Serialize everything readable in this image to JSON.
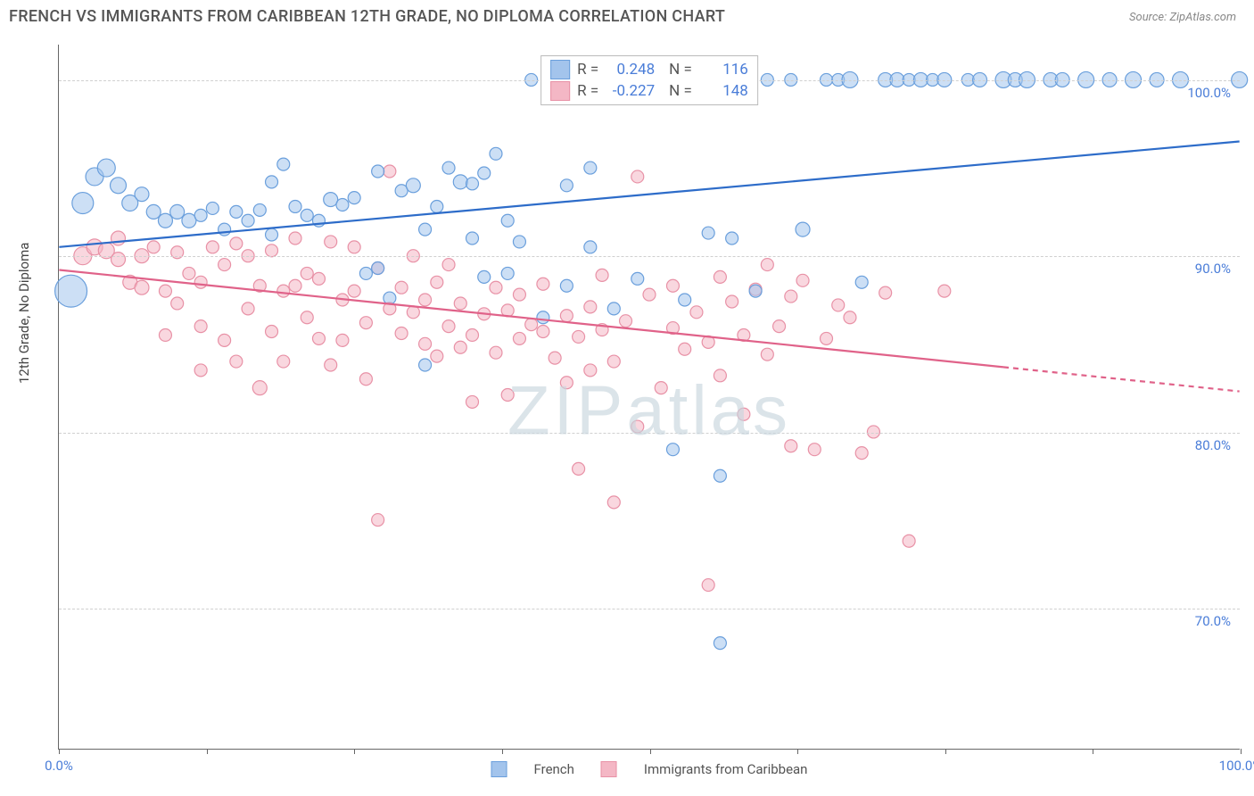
{
  "title": "FRENCH VS IMMIGRANTS FROM CARIBBEAN 12TH GRADE, NO DIPLOMA CORRELATION CHART",
  "source_label": "Source: ",
  "source_name": "ZipAtlas.com",
  "y_axis_label": "12th Grade, No Diploma",
  "watermark": "ZIPatlas",
  "chart": {
    "type": "scatter",
    "xlim": [
      0,
      100
    ],
    "ylim": [
      62,
      102
    ],
    "x_ticks": [
      0,
      12.5,
      25,
      37.5,
      50,
      62.5,
      75,
      87.5,
      100
    ],
    "x_tick_labels": {
      "0": "0.0%",
      "100": "100.0%"
    },
    "y_ticks": [
      70,
      80,
      90,
      100
    ],
    "y_tick_labels": {
      "70": "70.0%",
      "80": "80.0%",
      "90": "90.0%",
      "100": "100.0%"
    },
    "grid_color": "#d0d0d0",
    "background": "#ffffff",
    "series": {
      "french": {
        "label": "French",
        "color_fill": "#a3c4ec",
        "color_stroke": "#6a9fdc",
        "fill_opacity": 0.55,
        "line_color": "#2d6cc9",
        "line_width": 2.2,
        "R": "0.248",
        "N": "116",
        "trend": {
          "x1": 0,
          "y1": 90.5,
          "x2": 100,
          "y2": 96.5,
          "dash_from_x": null
        },
        "points": [
          [
            1,
            88,
            18
          ],
          [
            2,
            93,
            12
          ],
          [
            3,
            94.5,
            10
          ],
          [
            4,
            95,
            10
          ],
          [
            5,
            94,
            9
          ],
          [
            6,
            93,
            9
          ],
          [
            7,
            93.5,
            8
          ],
          [
            8,
            92.5,
            8
          ],
          [
            9,
            92,
            8
          ],
          [
            10,
            92.5,
            8
          ],
          [
            11,
            92,
            8
          ],
          [
            12,
            92.3,
            7
          ],
          [
            13,
            92.7,
            7
          ],
          [
            14,
            91.5,
            7
          ],
          [
            15,
            92.5,
            7
          ],
          [
            16,
            92,
            7
          ],
          [
            17,
            92.6,
            7
          ],
          [
            18,
            91.2,
            7
          ],
          [
            18,
            94.2,
            7
          ],
          [
            19,
            95.2,
            7
          ],
          [
            20,
            92.8,
            7
          ],
          [
            21,
            92.3,
            7
          ],
          [
            22,
            92,
            7
          ],
          [
            23,
            93.2,
            8
          ],
          [
            24,
            92.9,
            7
          ],
          [
            25,
            93.3,
            7
          ],
          [
            26,
            89,
            7
          ],
          [
            27,
            89.3,
            7
          ],
          [
            27,
            94.8,
            7
          ],
          [
            28,
            87.6,
            7
          ],
          [
            29,
            93.7,
            7
          ],
          [
            30,
            94,
            8
          ],
          [
            31,
            91.5,
            7
          ],
          [
            31,
            83.8,
            7
          ],
          [
            32,
            92.8,
            7
          ],
          [
            33,
            95,
            7
          ],
          [
            34,
            94.2,
            8
          ],
          [
            35,
            94.1,
            7
          ],
          [
            35,
            91,
            7
          ],
          [
            36,
            94.7,
            7
          ],
          [
            36,
            88.8,
            7
          ],
          [
            37,
            95.8,
            7
          ],
          [
            38,
            92,
            7
          ],
          [
            38,
            89,
            7
          ],
          [
            39,
            90.8,
            7
          ],
          [
            40,
            100,
            7
          ],
          [
            41,
            86.5,
            7
          ],
          [
            42,
            100,
            7
          ],
          [
            43,
            94,
            7
          ],
          [
            43,
            88.3,
            7
          ],
          [
            44,
            100,
            7
          ],
          [
            45,
            90.5,
            7
          ],
          [
            45,
            95,
            7
          ],
          [
            46,
            100,
            7
          ],
          [
            47,
            87,
            7
          ],
          [
            48,
            100,
            7
          ],
          [
            49,
            88.7,
            7
          ],
          [
            50,
            100,
            7
          ],
          [
            51,
            100,
            7
          ],
          [
            52,
            79,
            7
          ],
          [
            52,
            100,
            7
          ],
          [
            53,
            87.5,
            7
          ],
          [
            55,
            91.3,
            7
          ],
          [
            56,
            68,
            7
          ],
          [
            56,
            77.5,
            7
          ],
          [
            57,
            91,
            7
          ],
          [
            58,
            100,
            7
          ],
          [
            59,
            88,
            7
          ],
          [
            60,
            100,
            7
          ],
          [
            62,
            100,
            7
          ],
          [
            63,
            91.5,
            8
          ],
          [
            65,
            100,
            7
          ],
          [
            66,
            100,
            7
          ],
          [
            67,
            100,
            9
          ],
          [
            68,
            88.5,
            7
          ],
          [
            70,
            100,
            8
          ],
          [
            71,
            100,
            8
          ],
          [
            72,
            100,
            7
          ],
          [
            73,
            100,
            8
          ],
          [
            74,
            100,
            7
          ],
          [
            75,
            100,
            8
          ],
          [
            77,
            100,
            7
          ],
          [
            78,
            100,
            8
          ],
          [
            80,
            100,
            9
          ],
          [
            81,
            100,
            8
          ],
          [
            82,
            100,
            9
          ],
          [
            84,
            100,
            8
          ],
          [
            85,
            100,
            8
          ],
          [
            87,
            100,
            9
          ],
          [
            89,
            100,
            8
          ],
          [
            91,
            100,
            9
          ],
          [
            93,
            100,
            8
          ],
          [
            95,
            100,
            9
          ],
          [
            100,
            100,
            9
          ]
        ]
      },
      "caribbean": {
        "label": "Immigrants from Caribbean",
        "color_fill": "#f4b7c5",
        "color_stroke": "#e891a6",
        "fill_opacity": 0.55,
        "line_color": "#e06289",
        "line_width": 2.2,
        "R": "-0.227",
        "N": "148",
        "trend": {
          "x1": 0,
          "y1": 89.2,
          "x2": 100,
          "y2": 82.3,
          "dash_from_x": 80
        },
        "points": [
          [
            2,
            90,
            10
          ],
          [
            3,
            90.5,
            9
          ],
          [
            4,
            90.3,
            9
          ],
          [
            5,
            89.8,
            8
          ],
          [
            5,
            91,
            8
          ],
          [
            6,
            88.5,
            8
          ],
          [
            7,
            88.2,
            8
          ],
          [
            7,
            90,
            8
          ],
          [
            8,
            90.5,
            7
          ],
          [
            9,
            85.5,
            7
          ],
          [
            9,
            88,
            7
          ],
          [
            10,
            87.3,
            7
          ],
          [
            10,
            90.2,
            7
          ],
          [
            11,
            89,
            7
          ],
          [
            12,
            86,
            7
          ],
          [
            12,
            88.5,
            7
          ],
          [
            12,
            83.5,
            7
          ],
          [
            13,
            90.5,
            7
          ],
          [
            14,
            85.2,
            7
          ],
          [
            14,
            89.5,
            7
          ],
          [
            15,
            90.7,
            7
          ],
          [
            15,
            84,
            7
          ],
          [
            16,
            87,
            7
          ],
          [
            16,
            90,
            7
          ],
          [
            17,
            82.5,
            8
          ],
          [
            17,
            88.3,
            7
          ],
          [
            18,
            90.3,
            7
          ],
          [
            18,
            85.7,
            7
          ],
          [
            19,
            88,
            7
          ],
          [
            19,
            84,
            7
          ],
          [
            20,
            88.3,
            7
          ],
          [
            20,
            91,
            7
          ],
          [
            21,
            86.5,
            7
          ],
          [
            21,
            89,
            7
          ],
          [
            22,
            85.3,
            7
          ],
          [
            22,
            88.7,
            7
          ],
          [
            23,
            83.8,
            7
          ],
          [
            23,
            90.8,
            7
          ],
          [
            24,
            87.5,
            7
          ],
          [
            24,
            85.2,
            7
          ],
          [
            25,
            88,
            7
          ],
          [
            25,
            90.5,
            7
          ],
          [
            26,
            86.2,
            7
          ],
          [
            26,
            83,
            7
          ],
          [
            27,
            89.3,
            7
          ],
          [
            27,
            75,
            7
          ],
          [
            28,
            94.8,
            7
          ],
          [
            28,
            87,
            7
          ],
          [
            29,
            85.6,
            7
          ],
          [
            29,
            88.2,
            7
          ],
          [
            30,
            86.8,
            7
          ],
          [
            30,
            90,
            7
          ],
          [
            31,
            85,
            7
          ],
          [
            31,
            87.5,
            7
          ],
          [
            32,
            88.5,
            7
          ],
          [
            32,
            84.3,
            7
          ],
          [
            33,
            86,
            7
          ],
          [
            33,
            89.5,
            7
          ],
          [
            34,
            84.8,
            7
          ],
          [
            34,
            87.3,
            7
          ],
          [
            35,
            85.5,
            7
          ],
          [
            35,
            81.7,
            7
          ],
          [
            36,
            86.7,
            7
          ],
          [
            37,
            88.2,
            7
          ],
          [
            37,
            84.5,
            7
          ],
          [
            38,
            86.9,
            7
          ],
          [
            38,
            82.1,
            7
          ],
          [
            39,
            85.3,
            7
          ],
          [
            39,
            87.8,
            7
          ],
          [
            40,
            86.1,
            7
          ],
          [
            41,
            85.7,
            7
          ],
          [
            41,
            88.4,
            7
          ],
          [
            42,
            84.2,
            7
          ],
          [
            43,
            86.6,
            7
          ],
          [
            43,
            82.8,
            7
          ],
          [
            44,
            85.4,
            7
          ],
          [
            44,
            77.9,
            7
          ],
          [
            45,
            87.1,
            7
          ],
          [
            45,
            83.5,
            7
          ],
          [
            46,
            85.8,
            7
          ],
          [
            46,
            88.9,
            7
          ],
          [
            47,
            76,
            7
          ],
          [
            47,
            84,
            7
          ],
          [
            48,
            86.3,
            7
          ],
          [
            49,
            80.3,
            7
          ],
          [
            49,
            94.5,
            7
          ],
          [
            50,
            87.8,
            7
          ],
          [
            51,
            82.5,
            7
          ],
          [
            52,
            85.9,
            7
          ],
          [
            52,
            88.3,
            7
          ],
          [
            53,
            84.7,
            7
          ],
          [
            54,
            86.8,
            7
          ],
          [
            55,
            71.3,
            7
          ],
          [
            55,
            85.1,
            7
          ],
          [
            56,
            88.8,
            7
          ],
          [
            56,
            83.2,
            7
          ],
          [
            57,
            87.4,
            7
          ],
          [
            58,
            85.5,
            7
          ],
          [
            58,
            81,
            7
          ],
          [
            59,
            88.1,
            7
          ],
          [
            60,
            84.4,
            7
          ],
          [
            60,
            89.5,
            7
          ],
          [
            61,
            86.0,
            7
          ],
          [
            62,
            87.7,
            7
          ],
          [
            62,
            79.2,
            7
          ],
          [
            63,
            88.6,
            7
          ],
          [
            64,
            79,
            7
          ],
          [
            65,
            85.3,
            7
          ],
          [
            66,
            87.2,
            7
          ],
          [
            67,
            86.5,
            7
          ],
          [
            68,
            78.8,
            7
          ],
          [
            69,
            80,
            7
          ],
          [
            70,
            87.9,
            7
          ],
          [
            72,
            73.8,
            7
          ],
          [
            75,
            88,
            7
          ]
        ]
      }
    }
  },
  "stats_box": {
    "r_label": "R =",
    "n_label": "N ="
  }
}
